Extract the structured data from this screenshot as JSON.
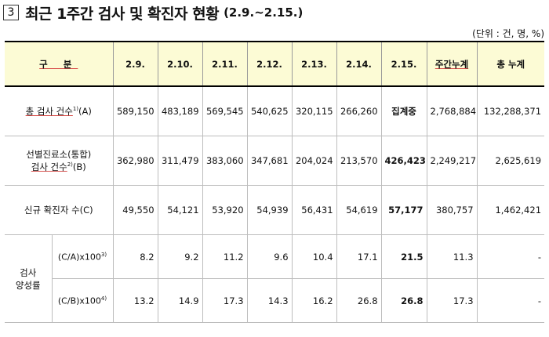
{
  "title": {
    "number": "3",
    "text": "최근 1주간 검사 및 확진자 현황",
    "range": "(2.9.~2.15.)"
  },
  "unit": "(단위 : 건, 명, %)",
  "headers": {
    "category": "구 분",
    "dates": [
      "2.9.",
      "2.10.",
      "2.11.",
      "2.12.",
      "2.13.",
      "2.14.",
      "2.15."
    ],
    "weekly_total": "주간누계",
    "grand_total": "총 누계"
  },
  "rows": {
    "total_tests": {
      "label": "총 검사 건수",
      "sup": "1)",
      "suffix": "(A)",
      "values": [
        "589,150",
        "483,189",
        "569,545",
        "540,625",
        "320,115",
        "266,260",
        "집계중"
      ],
      "weekly_total": "2,768,884",
      "grand_total": "132,288,371"
    },
    "screening_tests": {
      "label_line1": "선별진료소(통합)",
      "label_line2": "검사 건수",
      "sup": "2)",
      "suffix": "(B)",
      "values": [
        "362,980",
        "311,479",
        "383,060",
        "347,681",
        "204,024",
        "213,570",
        "426,423"
      ],
      "weekly_total": "2,249,217",
      "grand_total": "2,625,619"
    },
    "new_cases": {
      "label": "신규 확진자 수(C)",
      "values": [
        "49,550",
        "54,121",
        "53,920",
        "54,939",
        "56,431",
        "54,619",
        "57,177"
      ],
      "weekly_total": "380,757",
      "grand_total": "1,462,421"
    },
    "positivity": {
      "group_label_line1": "검사",
      "group_label_line2": "양성률",
      "ca": {
        "label": "(C/A)x100",
        "sup": "3)",
        "values": [
          "8.2",
          "9.2",
          "11.2",
          "9.6",
          "10.4",
          "17.1",
          "21.5"
        ],
        "weekly_total": "11.3",
        "grand_total": "-"
      },
      "cb": {
        "label": "(C/B)x100",
        "sup": "4)",
        "values": [
          "13.2",
          "14.9",
          "17.3",
          "14.3",
          "16.2",
          "26.8",
          "26.8"
        ],
        "weekly_total": "17.3",
        "grand_total": "-"
      }
    }
  }
}
